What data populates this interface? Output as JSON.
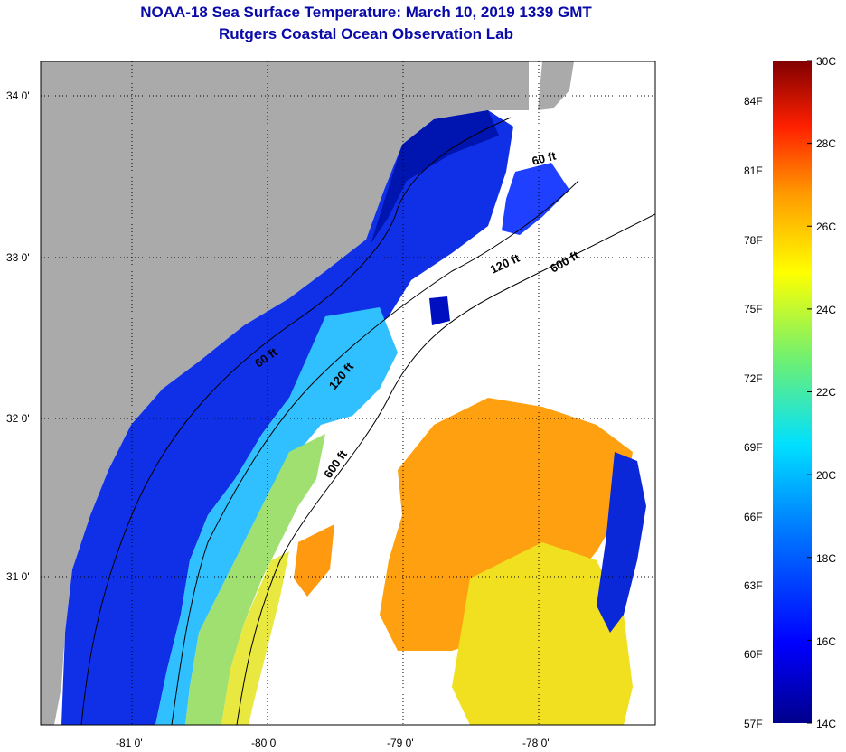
{
  "title": "NOAA-18 Sea Surface Temperature:  March 10, 2019 1339 GMT",
  "subtitle": "Rutgers Coastal Ocean Observation Lab",
  "map": {
    "lat_labels": [
      "34 0'",
      "33 0'",
      "32 0'",
      "31 0'"
    ],
    "lon_labels": [
      "-81 0'",
      "-80 0'",
      "-79 0'",
      "-78 0'"
    ],
    "isobaths": [
      {
        "label": "60 ft",
        "where": "north"
      },
      {
        "label": "120 ft",
        "where": "north"
      },
      {
        "label": "600 ft",
        "where": "north"
      },
      {
        "label": "60 ft",
        "where": "south"
      },
      {
        "label": "120 ft",
        "where": "south"
      },
      {
        "label": "600 ft",
        "where": "south"
      }
    ],
    "colors": {
      "land": "#aaaaaa",
      "cloud": "#ffffff",
      "frame": "#000000",
      "title": "#0a0aa8"
    }
  },
  "colorbar": {
    "celsius_labels": [
      "30C",
      "28C",
      "26C",
      "24C",
      "22C",
      "20C",
      "18C",
      "16C",
      "14C"
    ],
    "fahrenheit_labels": [
      "84F",
      "81F",
      "78F",
      "75F",
      "72F",
      "69F",
      "66F",
      "63F",
      "60F",
      "57F"
    ],
    "range_c": [
      14,
      30
    ]
  }
}
